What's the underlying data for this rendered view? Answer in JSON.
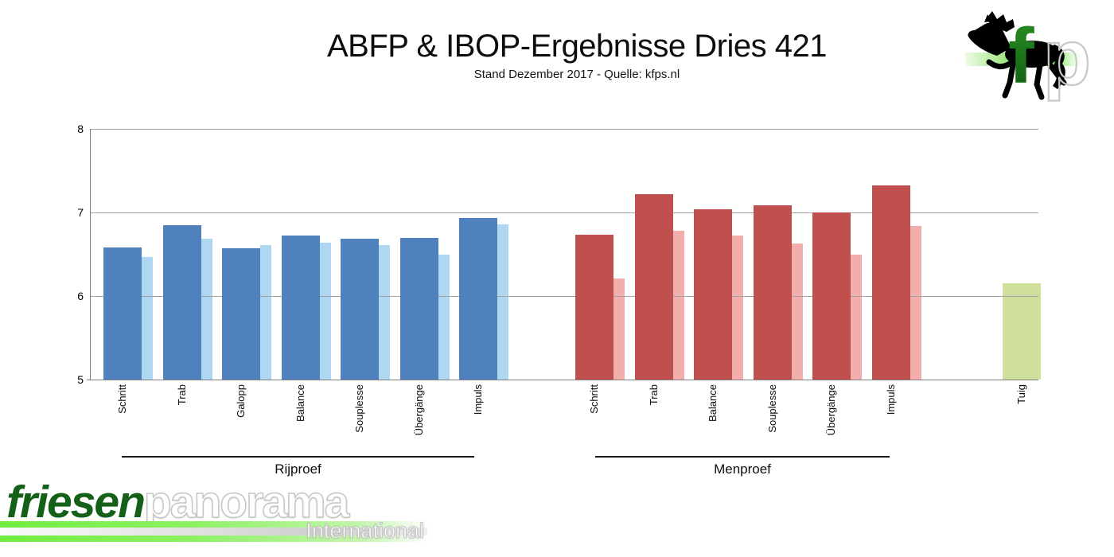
{
  "header": {
    "title": "ABFP & IBOP-Ergebnisse Dries 421",
    "subtitle": "Stand Dezember 2017 - Quelle: kfps.nl"
  },
  "chart_data": {
    "type": "bar",
    "title": "ABFP & IBOP-Ergebnisse Dries 421",
    "subtitle": "Stand Dezember 2017 - Quelle: kfps.nl",
    "ylim": [
      5,
      8
    ],
    "yticks": [
      5,
      6,
      7,
      8
    ],
    "grid": true,
    "legend": "none",
    "groups": [
      {
        "label": "Rijproef",
        "categories": [
          "Schritt",
          "Trab",
          "Galopp",
          "Balance",
          "Souplesse",
          "Übergänge",
          "Impuls"
        ],
        "series": [
          {
            "name": "primary",
            "color": "#4e81bd",
            "values": [
              6.58,
              6.85,
              6.57,
              6.72,
              6.69,
              6.7,
              6.93
            ]
          },
          {
            "name": "secondary",
            "color": "#b0d7f1",
            "values": [
              6.47,
              6.69,
              6.61,
              6.64,
              6.61,
              6.5,
              6.86
            ]
          }
        ]
      },
      {
        "label": "Menproef",
        "categories": [
          "Schritt",
          "Trab",
          "Balance",
          "Souplesse",
          "Übergänge",
          "Impuls"
        ],
        "series": [
          {
            "name": "primary",
            "color": "#c0504d",
            "values": [
              6.73,
              7.22,
              7.04,
              7.09,
              7.0,
              7.32
            ]
          },
          {
            "name": "secondary",
            "color": "#f2aeac",
            "values": [
              6.21,
              6.78,
              6.72,
              6.63,
              6.5,
              6.84
            ]
          }
        ]
      },
      {
        "label": "",
        "categories": [
          "Tuig"
        ],
        "series": [
          {
            "name": "primary",
            "color": "#cfe09d",
            "values": [
              6.15
            ]
          }
        ]
      }
    ],
    "colors": {
      "rijproef_primary": "#4e81bd",
      "rijproef_secondary": "#b0d7f1",
      "menproef_primary": "#c0504d",
      "menproef_secondary": "#f2aeac",
      "tuig": "#cfe09d",
      "gridline": "#a3a3a3",
      "axis": "#808080"
    }
  },
  "logos": {
    "fp_monogram": {
      "letter_f": "f",
      "letter_p": "p"
    },
    "wordmark": {
      "part1": "friesen",
      "part2": "panorama",
      "part3": "International"
    }
  }
}
